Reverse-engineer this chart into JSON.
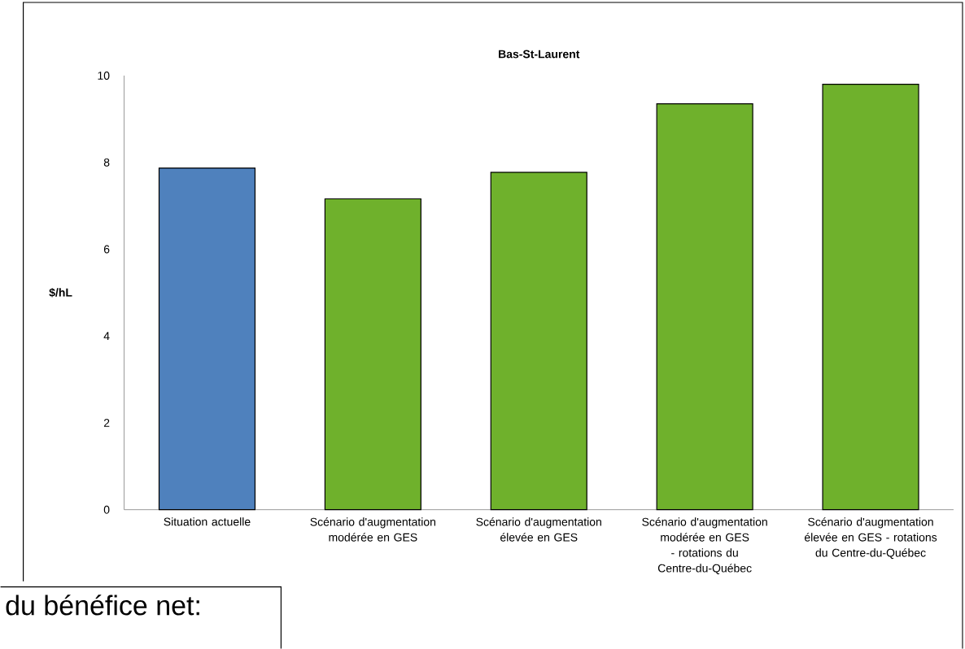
{
  "chart_data": {
    "type": "bar",
    "title": "Bas-St-Laurent",
    "ylabel": "$/hL",
    "categories": [
      "Situation actuelle",
      "Scénario d'augmentation modérée en GES",
      "Scénario d'augmentation élevée en GES",
      "Scénario d'augmentation modérée en GES - rotations du Centre-du-Québec",
      "Scénario d'augmentation élevée en GES - rotations du Centre-du-Québec"
    ],
    "values": [
      7.87,
      7.16,
      7.77,
      9.35,
      9.8
    ],
    "colors": [
      "#4f81bd",
      "#6fb12c",
      "#6fb12c",
      "#6fb12c",
      "#6fb12c"
    ],
    "ylim": [
      0,
      10
    ],
    "yticks": [
      0,
      2,
      4,
      6,
      8,
      10
    ],
    "grid": false,
    "annotations": [
      "du bénéfice net:"
    ]
  }
}
